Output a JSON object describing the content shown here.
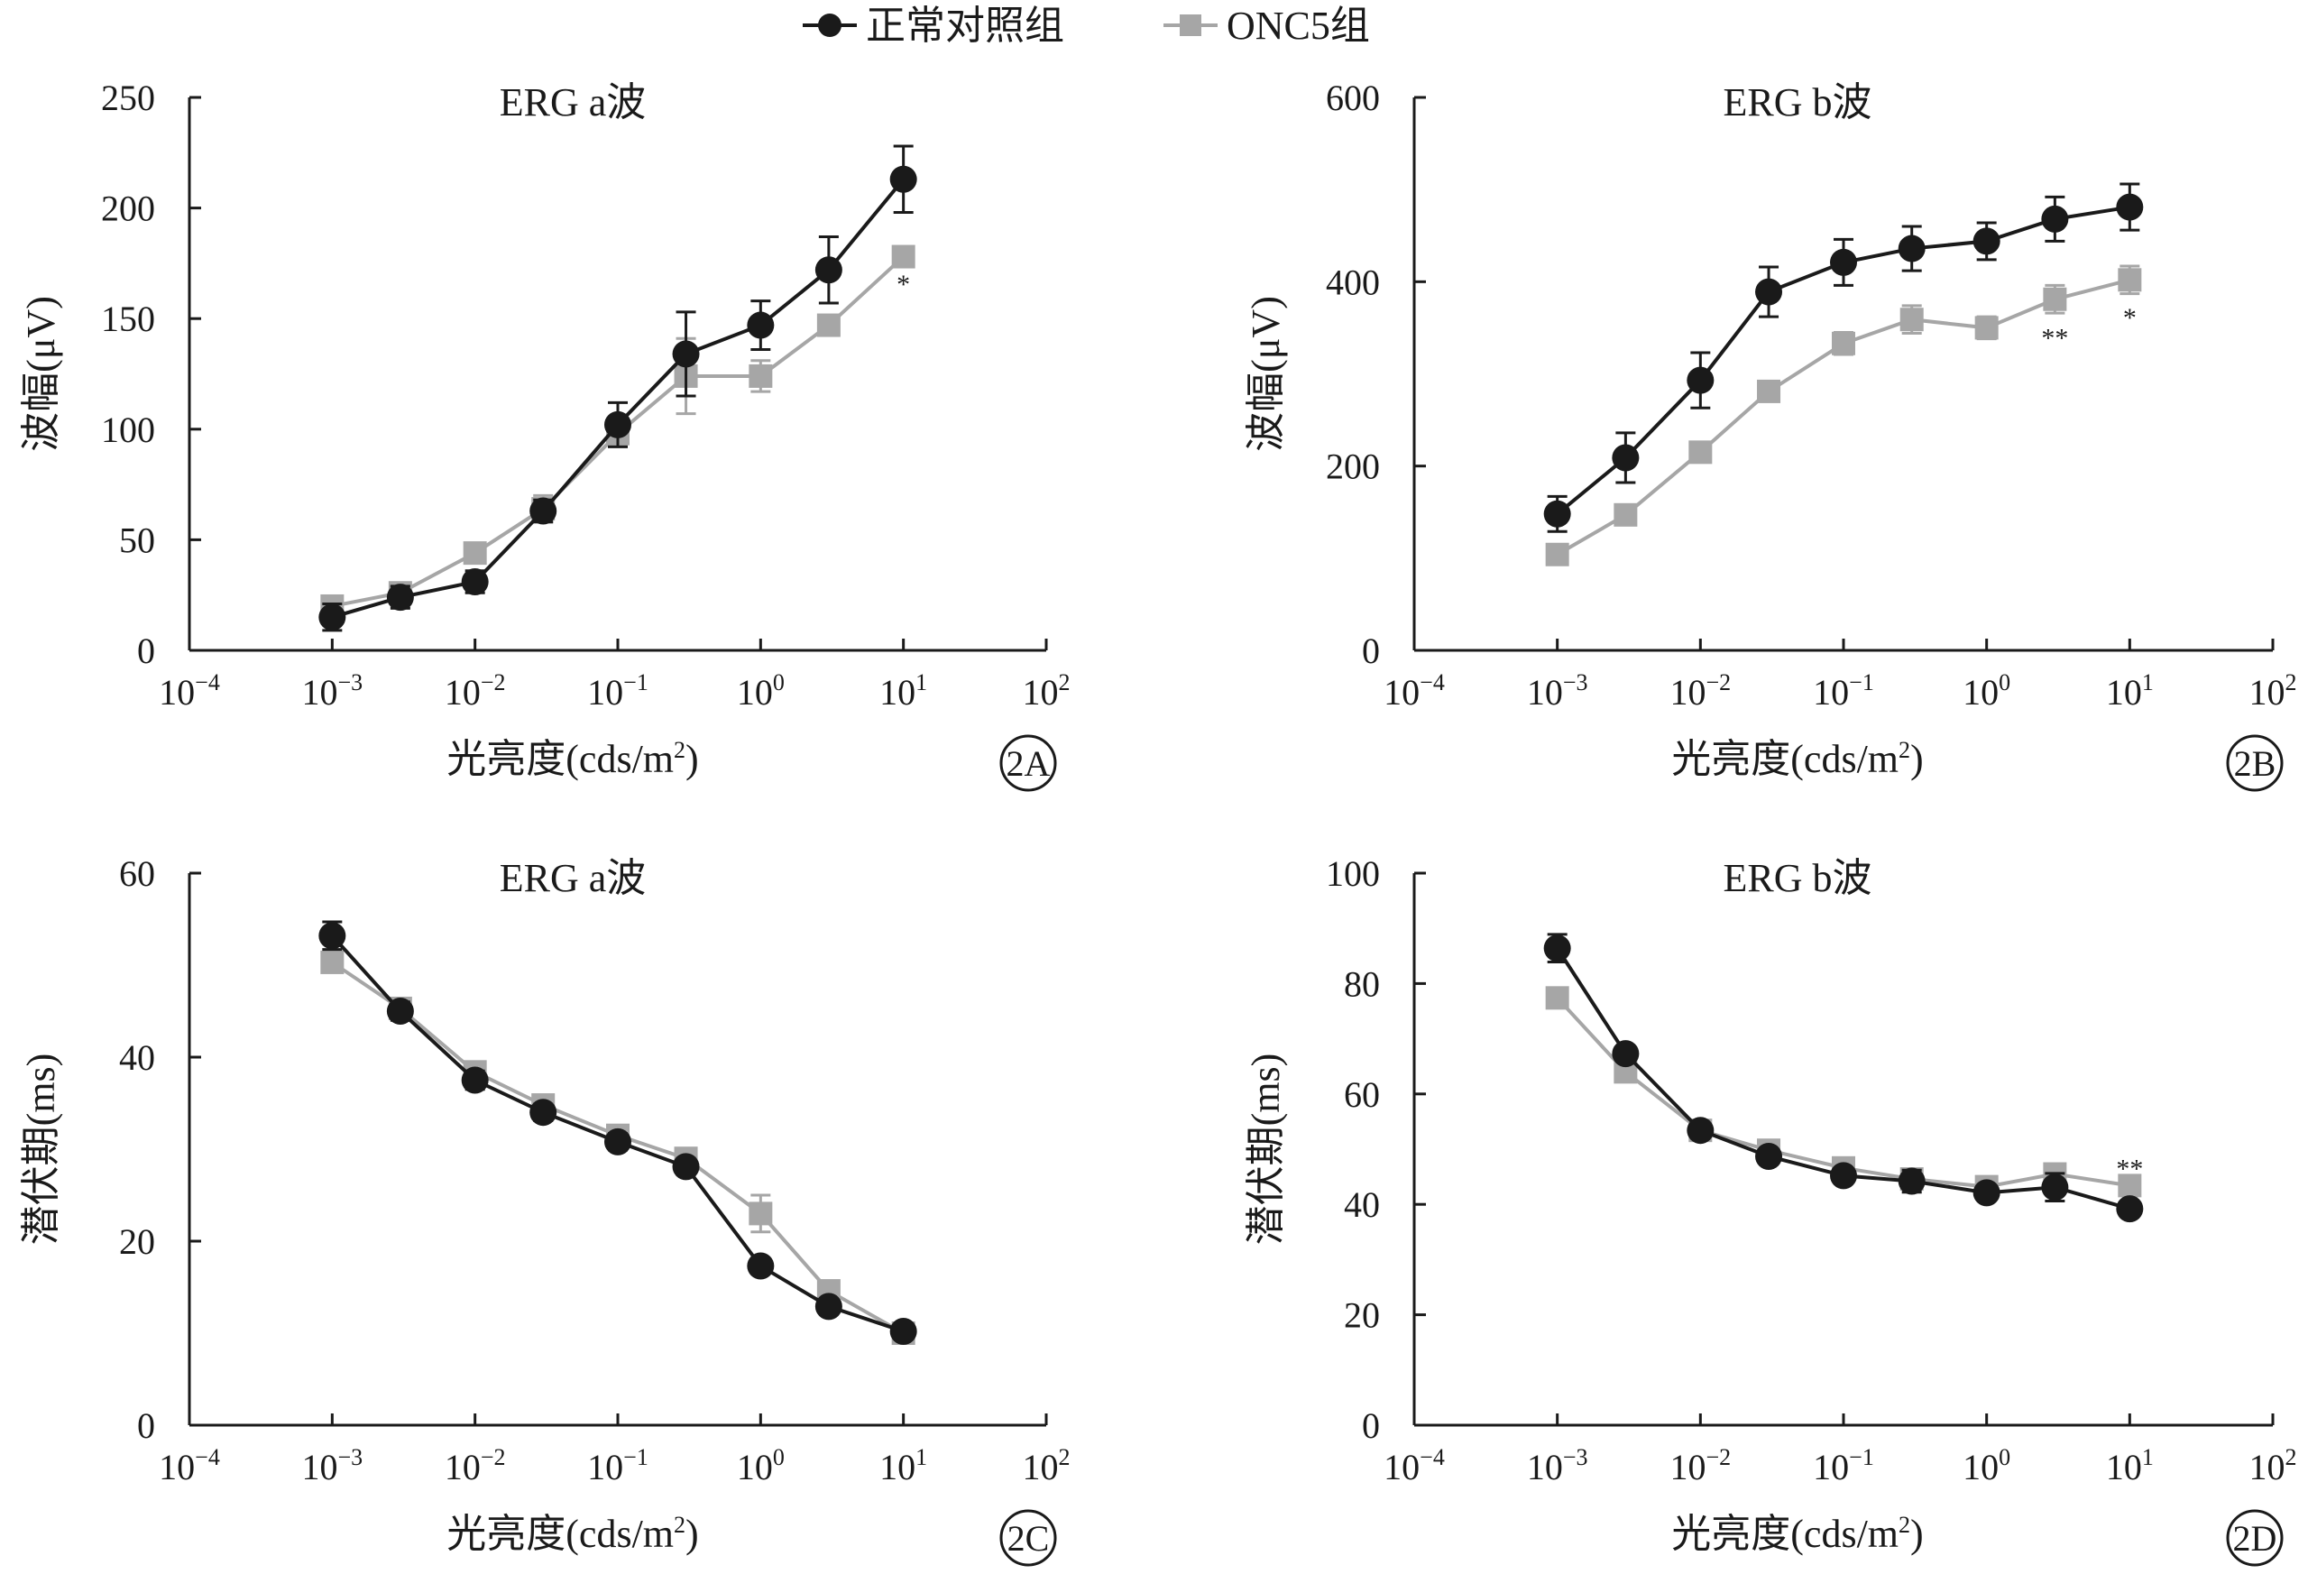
{
  "legend": {
    "position": "top-center",
    "items": [
      {
        "label": "正常对照组",
        "color": "#1a1a1a",
        "marker": "circle"
      },
      {
        "label": "ONC5组",
        "color": "#a6a6a6",
        "marker": "square"
      }
    ]
  },
  "chart_data": [
    {
      "id": "2A",
      "type": "line",
      "title": "ERG a波",
      "xlabel": "光亮度(cds/m²)",
      "ylabel": "波幅(μV)",
      "x_scale": "log",
      "xlim": [
        0.0001,
        100
      ],
      "ylim": [
        0,
        250
      ],
      "x_ticks": [
        "10^-4",
        "10^-3",
        "10^-2",
        "10^-1",
        "10^0",
        "10^1",
        "10^2"
      ],
      "y_ticks": [
        0,
        50,
        100,
        150,
        200,
        250
      ],
      "panel_label": "2A",
      "series": [
        {
          "name": "正常对照组",
          "color": "#1a1a1a",
          "marker": "circle",
          "x": [
            0.001,
            0.003,
            0.01,
            0.03,
            0.1,
            0.3,
            1,
            3,
            10
          ],
          "y": [
            15,
            24,
            31,
            63,
            102,
            134,
            147,
            172,
            213
          ],
          "err": [
            6,
            5,
            5,
            5,
            10,
            19,
            11,
            15,
            15
          ]
        },
        {
          "name": "ONC5组",
          "color": "#a6a6a6",
          "marker": "square",
          "x": [
            0.001,
            0.003,
            0.01,
            0.03,
            0.1,
            0.3,
            1,
            3,
            10
          ],
          "y": [
            20,
            26,
            44,
            64,
            98,
            124,
            124,
            147,
            178
          ],
          "err": [
            4,
            4,
            3,
            6,
            5,
            17,
            7,
            4,
            4
          ]
        }
      ],
      "annotations": [
        {
          "text": "*",
          "x": 10,
          "y": 168
        }
      ]
    },
    {
      "id": "2B",
      "type": "line",
      "title": "ERG b波",
      "xlabel": "光亮度(cds/m²)",
      "ylabel": "波幅(μV)",
      "x_scale": "log",
      "xlim": [
        0.0001,
        100
      ],
      "ylim": [
        0,
        600
      ],
      "x_ticks": [
        "10^-4",
        "10^-3",
        "10^-2",
        "10^-1",
        "10^0",
        "10^1",
        "10^2"
      ],
      "y_ticks": [
        0,
        200,
        400,
        600
      ],
      "panel_label": "2B",
      "series": [
        {
          "name": "正常对照组",
          "color": "#1a1a1a",
          "marker": "circle",
          "x": [
            0.001,
            0.003,
            0.01,
            0.03,
            0.1,
            0.3,
            1,
            3,
            10
          ],
          "y": [
            148,
            209,
            293,
            389,
            421,
            436,
            444,
            468,
            481
          ],
          "err": [
            19,
            27,
            30,
            27,
            25,
            24,
            20,
            24,
            25
          ]
        },
        {
          "name": "ONC5组",
          "color": "#a6a6a6",
          "marker": "square",
          "x": [
            0.001,
            0.003,
            0.01,
            0.03,
            0.1,
            0.3,
            1,
            3,
            10
          ],
          "y": [
            104,
            147,
            215,
            281,
            333,
            359,
            350,
            381,
            402
          ],
          "err": [
            6,
            6,
            6,
            9,
            12,
            15,
            12,
            15,
            15
          ]
        }
      ],
      "annotations": [
        {
          "text": "**",
          "x": 3,
          "y": 345
        },
        {
          "text": "*",
          "x": 10,
          "y": 367
        }
      ]
    },
    {
      "id": "2C",
      "type": "line",
      "title": "ERG a波",
      "xlabel": "光亮度(cds/m²)",
      "ylabel": "潜伏期(ms)",
      "x_scale": "log",
      "xlim": [
        0.0001,
        100
      ],
      "ylim": [
        0,
        60
      ],
      "x_ticks": [
        "10^-4",
        "10^-3",
        "10^-2",
        "10^-1",
        "10^0",
        "10^1",
        "10^2"
      ],
      "y_ticks": [
        0,
        20,
        40,
        60
      ],
      "panel_label": "2C",
      "series": [
        {
          "name": "正常对照组",
          "color": "#1a1a1a",
          "marker": "circle",
          "x": [
            0.001,
            0.003,
            0.01,
            0.03,
            0.1,
            0.3,
            1,
            3,
            10
          ],
          "y": [
            53.2,
            45.0,
            37.5,
            34.0,
            30.8,
            28.1,
            17.3,
            12.9,
            10.2
          ],
          "err": [
            1.5,
            1.0,
            1.0,
            0.9,
            0.9,
            0.9,
            0.8,
            0.8,
            0.6
          ]
        },
        {
          "name": "ONC5组",
          "color": "#a6a6a6",
          "marker": "square",
          "x": [
            0.001,
            0.003,
            0.01,
            0.03,
            0.1,
            0.3,
            1,
            3,
            10
          ],
          "y": [
            50.3,
            45.3,
            38.4,
            34.8,
            31.5,
            29.0,
            23.0,
            14.6,
            10.0
          ],
          "err": [
            1.0,
            1.0,
            1.0,
            0.9,
            0.9,
            0.9,
            2.0,
            0.9,
            0.6
          ]
        }
      ],
      "annotations": []
    },
    {
      "id": "2D",
      "type": "line",
      "title": "ERG b波",
      "xlabel": "光亮度(cds/m²)",
      "ylabel": "潜伏期(ms)",
      "x_scale": "log",
      "xlim": [
        0.0001,
        100
      ],
      "ylim": [
        0,
        100
      ],
      "x_ticks": [
        "10^-4",
        "10^-3",
        "10^-2",
        "10^-1",
        "10^0",
        "10^1",
        "10^2"
      ],
      "y_ticks": [
        0,
        20,
        40,
        60,
        80,
        100
      ],
      "panel_label": "2D",
      "series": [
        {
          "name": "正常对照组",
          "color": "#1a1a1a",
          "marker": "circle",
          "x": [
            0.001,
            0.003,
            0.01,
            0.03,
            0.1,
            0.3,
            1,
            3,
            10
          ],
          "y": [
            86.4,
            67.3,
            53.4,
            48.7,
            45.2,
            44.2,
            42.1,
            43.1,
            39.2
          ],
          "err": [
            2.5,
            1.2,
            1.2,
            1.2,
            1.2,
            2.0,
            1.2,
            2.5,
            1.0
          ]
        },
        {
          "name": "ONC5组",
          "color": "#a6a6a6",
          "marker": "square",
          "x": [
            0.001,
            0.003,
            0.01,
            0.03,
            0.1,
            0.3,
            1,
            3,
            10
          ],
          "y": [
            77.4,
            64.0,
            53.4,
            49.8,
            46.6,
            44.6,
            43.2,
            45.5,
            43.4
          ],
          "err": [
            1.2,
            1.2,
            1.2,
            1.2,
            1.2,
            1.2,
            1.2,
            1.5,
            1.2
          ]
        }
      ],
      "annotations": [
        {
          "text": "**",
          "x": 10,
          "y": 47.5
        }
      ]
    }
  ]
}
